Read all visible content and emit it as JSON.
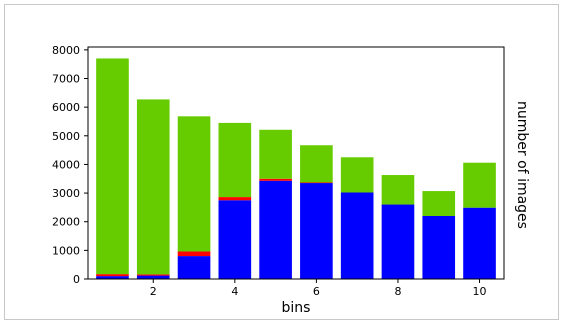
{
  "chart_data": {
    "type": "bar",
    "stacked": true,
    "x": [
      1,
      2,
      3,
      4,
      5,
      6,
      7,
      8,
      9,
      10
    ],
    "series": [
      {
        "color": "#0000ff",
        "values": [
          100,
          120,
          800,
          2750,
          3430,
          3350,
          3020,
          2600,
          2200,
          2490
        ]
      },
      {
        "color": "#ff0000",
        "values": [
          70,
          40,
          160,
          110,
          70,
          20,
          0,
          0,
          0,
          0
        ]
      },
      {
        "color": "#66cc00",
        "values": [
          7530,
          6110,
          4720,
          2590,
          1710,
          1300,
          1230,
          1030,
          870,
          1570
        ]
      }
    ],
    "xlabel": "bins",
    "ylabel": "number of images",
    "xlim": [
      0.4,
      10.6
    ],
    "ylim": [
      0,
      8100
    ],
    "xticks": [
      2,
      4,
      6,
      8,
      10
    ],
    "yticks": [
      0,
      1000,
      2000,
      3000,
      4000,
      5000,
      6000,
      7000,
      8000
    ],
    "legend": false,
    "grid": false
  }
}
